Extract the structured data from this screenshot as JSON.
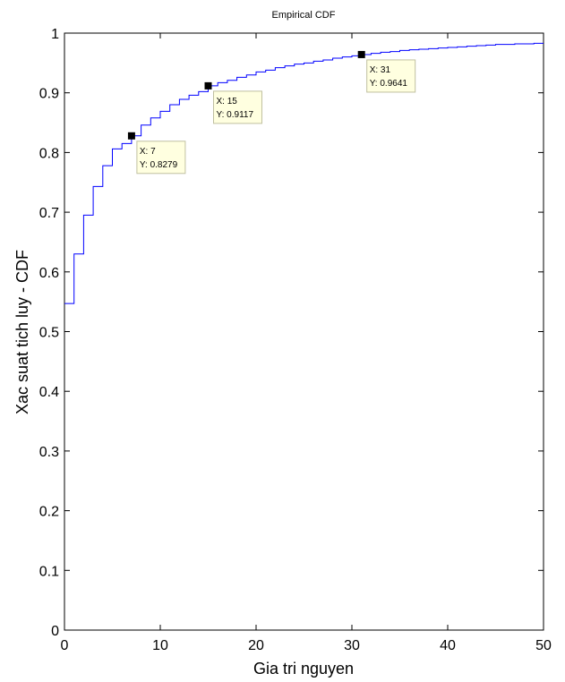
{
  "chart_data": {
    "type": "line",
    "title": "Empirical CDF",
    "xlabel": "Gia tri nguyen",
    "ylabel": "Xac suat tich luy - CDF",
    "xlim": [
      0,
      50
    ],
    "ylim": [
      0,
      1
    ],
    "xticks": [
      "0",
      "10",
      "20",
      "30",
      "40",
      "50"
    ],
    "yticks": [
      "0",
      "0.1",
      "0.2",
      "0.3",
      "0.4",
      "0.5",
      "0.6",
      "0.7",
      "0.8",
      "0.9",
      "1"
    ],
    "grid": false,
    "series": [
      {
        "color": "#0000ff",
        "step": true,
        "x": [
          0,
          1,
          2,
          3,
          4,
          5,
          6,
          7,
          8,
          9,
          10,
          11,
          12,
          13,
          14,
          15,
          16,
          17,
          18,
          19,
          20,
          21,
          22,
          23,
          24,
          25,
          26,
          27,
          28,
          29,
          30,
          31,
          32,
          33,
          34,
          35,
          36,
          37,
          38,
          39,
          40,
          41,
          42,
          43,
          44,
          45,
          46,
          47,
          48,
          49,
          50
        ],
        "y": [
          0.547,
          0.63,
          0.695,
          0.743,
          0.778,
          0.806,
          0.815,
          0.8279,
          0.846,
          0.858,
          0.869,
          0.88,
          0.889,
          0.896,
          0.902,
          0.9117,
          0.917,
          0.921,
          0.926,
          0.93,
          0.935,
          0.938,
          0.942,
          0.945,
          0.948,
          0.95,
          0.953,
          0.955,
          0.958,
          0.96,
          0.962,
          0.9641,
          0.966,
          0.968,
          0.969,
          0.971,
          0.972,
          0.973,
          0.974,
          0.975,
          0.976,
          0.977,
          0.978,
          0.979,
          0.98,
          0.981,
          0.981,
          0.982,
          0.982,
          0.983,
          0.983
        ]
      }
    ],
    "datatips": [
      {
        "x": 7,
        "y": 0.8279,
        "label_x": "X: 7",
        "label_y": "Y: 0.8279"
      },
      {
        "x": 15,
        "y": 0.9117,
        "label_x": "X: 15",
        "label_y": "Y: 0.9117"
      },
      {
        "x": 31,
        "y": 0.9641,
        "label_x": "X: 31",
        "label_y": "Y: 0.9641"
      }
    ],
    "colors": {
      "line": "#0000ff",
      "tip_fill": "#ffffe0",
      "tip_border": "#c0c0a0",
      "marker": "#000000"
    }
  }
}
